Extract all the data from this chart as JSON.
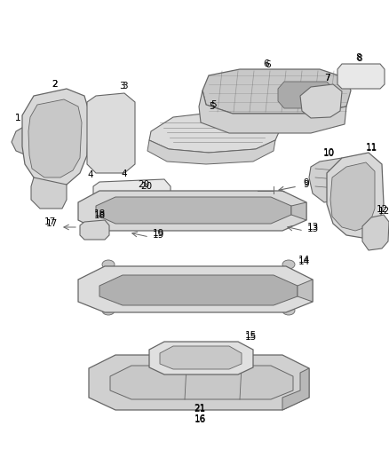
{
  "bg_color": "#ffffff",
  "line_color": "#666666",
  "fill_light": "#e8e8e8",
  "fill_mid": "#d0d0d0",
  "fill_dark": "#b8b8b8",
  "label_color": "#000000",
  "figsize": [
    4.38,
    5.33
  ],
  "dpi": 100
}
